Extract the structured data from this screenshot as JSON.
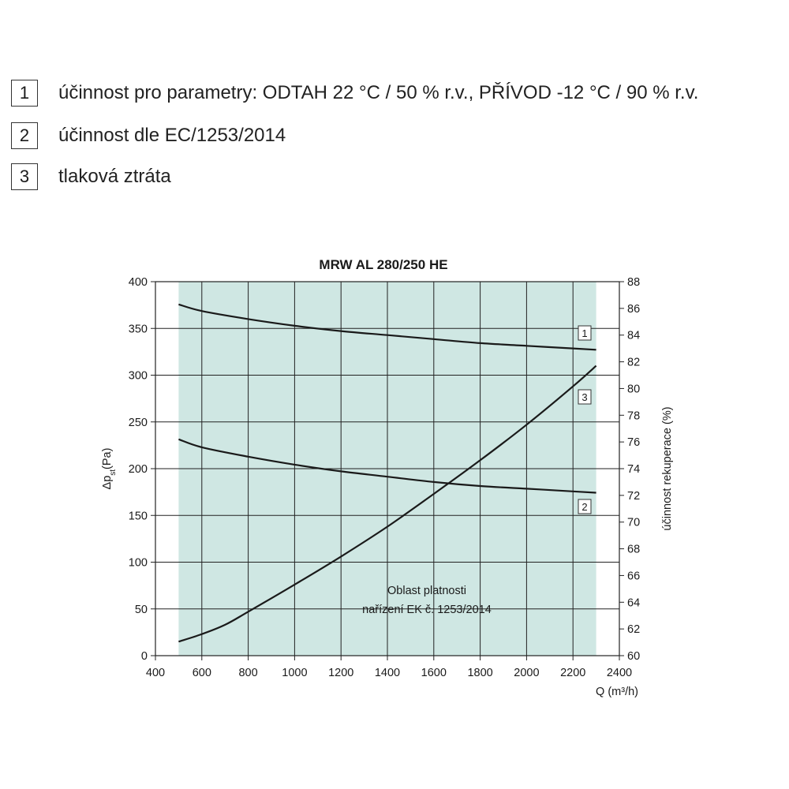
{
  "legend": [
    {
      "num": "1",
      "text": "účinnost pro parametry: ODTAH 22 °C / 50 % r.v., PŘÍVOD -12 °C / 90 % r.v."
    },
    {
      "num": "2",
      "text": "účinnost dle EC/1253/2014"
    },
    {
      "num": "3",
      "text": "tlaková ztráta"
    }
  ],
  "chart_data": {
    "type": "line",
    "title": "MRW AL 280/250 HE",
    "xlabel": "Q (m³/h)",
    "ylabel_left": "Δp_st(Pa)",
    "ylabel_right": "účinnost rekuperace (%)",
    "xlim": [
      400,
      2400
    ],
    "ylim_left": [
      0,
      400
    ],
    "ylim_right": [
      60,
      88
    ],
    "x_ticks": [
      400,
      600,
      800,
      1000,
      1200,
      1400,
      1600,
      1800,
      2000,
      2200,
      2400
    ],
    "y_left_ticks": [
      0,
      50,
      100,
      150,
      200,
      250,
      300,
      350,
      400
    ],
    "y_right_ticks": [
      60,
      62,
      64,
      66,
      68,
      70,
      72,
      74,
      76,
      78,
      80,
      82,
      84,
      86,
      88
    ],
    "grid": true,
    "region": {
      "x_range": [
        500,
        2300
      ],
      "label_lines": [
        "Oblast platnosti",
        "nařízení EK č. 1253/2014"
      ],
      "color": "#cfe7e3"
    },
    "series": [
      {
        "id": "1",
        "axis": "right",
        "x": [
          500,
          600,
          800,
          1000,
          1200,
          1400,
          1600,
          1800,
          2000,
          2200,
          2300
        ],
        "y": [
          86.3,
          85.8,
          85.2,
          84.7,
          84.3,
          84.0,
          83.7,
          83.4,
          83.2,
          83.0,
          82.9
        ]
      },
      {
        "id": "2",
        "axis": "right",
        "x": [
          500,
          600,
          800,
          1000,
          1200,
          1400,
          1600,
          1800,
          2000,
          2200,
          2300
        ],
        "y": [
          76.2,
          75.6,
          74.9,
          74.3,
          73.8,
          73.4,
          73.0,
          72.7,
          72.5,
          72.3,
          72.2
        ]
      },
      {
        "id": "3",
        "axis": "left",
        "x": [
          500,
          600,
          700,
          800,
          1000,
          1200,
          1400,
          1600,
          1800,
          2000,
          2200,
          2300
        ],
        "y": [
          15,
          23,
          33,
          47,
          76,
          106,
          138,
          173,
          209,
          247,
          288,
          310
        ]
      }
    ],
    "line_color": "#1a1a1a"
  }
}
